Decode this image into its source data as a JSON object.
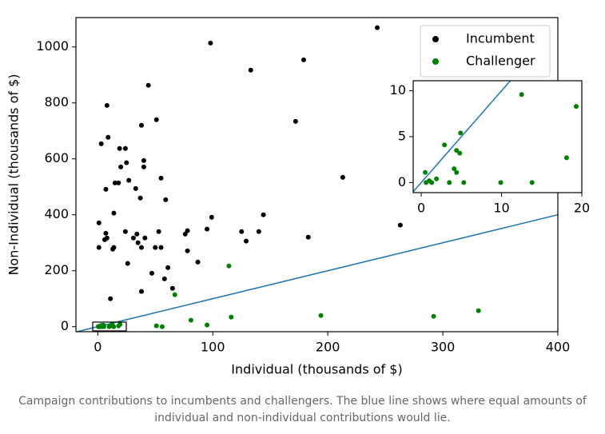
{
  "chart_data": [
    {
      "type": "scatter",
      "xlabel": "Individual (thousands of $)",
      "ylabel": "Non-Individual (thousands of $)",
      "xlim": [
        -19,
        400
      ],
      "ylim": [
        -18,
        1105
      ],
      "xticks": [
        0,
        100,
        200,
        300,
        400
      ],
      "yticks": [
        0,
        200,
        400,
        600,
        800,
        1000
      ],
      "legend": "upper right",
      "diagonal": true,
      "series": [
        {
          "name": "Incumbent",
          "color": "#000000",
          "x": [
            243,
            98,
            179,
            133,
            44,
            8,
            51,
            172,
            38,
            9,
            3,
            19,
            24,
            40,
            25,
            40,
            20,
            213,
            55,
            27,
            15,
            18,
            7,
            33,
            37,
            59,
            14,
            99,
            144,
            1,
            263,
            78,
            76,
            183,
            125,
            140,
            129,
            95,
            53,
            7,
            34,
            24,
            31,
            41,
            8,
            6,
            35,
            50,
            55,
            14,
            1,
            38,
            78,
            13,
            87,
            26,
            61,
            47,
            58,
            65,
            38,
            11
          ],
          "values": [
            1069,
            1014,
            954,
            917,
            863,
            791,
            740,
            734,
            720,
            677,
            654,
            637,
            637,
            594,
            586,
            571,
            571,
            534,
            531,
            523,
            514,
            514,
            491,
            494,
            460,
            454,
            406,
            391,
            400,
            371,
            363,
            343,
            331,
            320,
            340,
            340,
            306,
            349,
            340,
            334,
            331,
            340,
            317,
            317,
            317,
            311,
            300,
            283,
            283,
            283,
            283,
            283,
            271,
            277,
            231,
            226,
            211,
            191,
            171,
            137,
            126,
            100
          ]
        },
        {
          "name": "Challenger",
          "color": "#008000",
          "x": [
            114,
            67,
            331,
            194,
            292,
            116,
            81,
            51,
            56,
            95,
            12.5,
            19.3,
            4.9,
            2.9,
            4.4,
            4.8,
            18.1,
            4.1,
            4.4,
            0.5,
            1.9,
            1.0,
            1.3,
            0.6,
            3.5,
            5.3,
            9.9,
            13.8
          ],
          "values": [
            217,
            114,
            57,
            40,
            37,
            34,
            23,
            3,
            0,
            6,
            9.6,
            8.3,
            5.4,
            4.1,
            3.5,
            3.2,
            2.7,
            1.5,
            1.1,
            1.1,
            0.4,
            0.2,
            0,
            0,
            0,
            0,
            0,
            0
          ]
        }
      ]
    },
    {
      "type": "scatter",
      "xlim": [
        -1,
        20
      ],
      "ylim": [
        -1.1,
        11.1
      ],
      "xticks": [
        0,
        10,
        20
      ],
      "yticks": [
        0,
        5,
        10
      ],
      "diagonal": true,
      "series": [
        {
          "color": "#008000",
          "x": [
            12.5,
            19.3,
            4.9,
            2.9,
            4.4,
            4.8,
            18.1,
            4.1,
            4.4,
            0.5,
            1.9,
            1.0,
            1.3,
            0.6,
            3.5,
            5.3,
            9.9,
            13.8
          ],
          "values": [
            9.6,
            8.3,
            5.4,
            4.1,
            3.5,
            3.2,
            2.7,
            1.5,
            1.1,
            1.1,
            0.4,
            0.2,
            0,
            0,
            0,
            0,
            0,
            0
          ]
        }
      ]
    }
  ],
  "caption": "Campaign contributions to incumbents and challengers. The blue line shows where equal amounts of individual and non-individual contributions would lie."
}
